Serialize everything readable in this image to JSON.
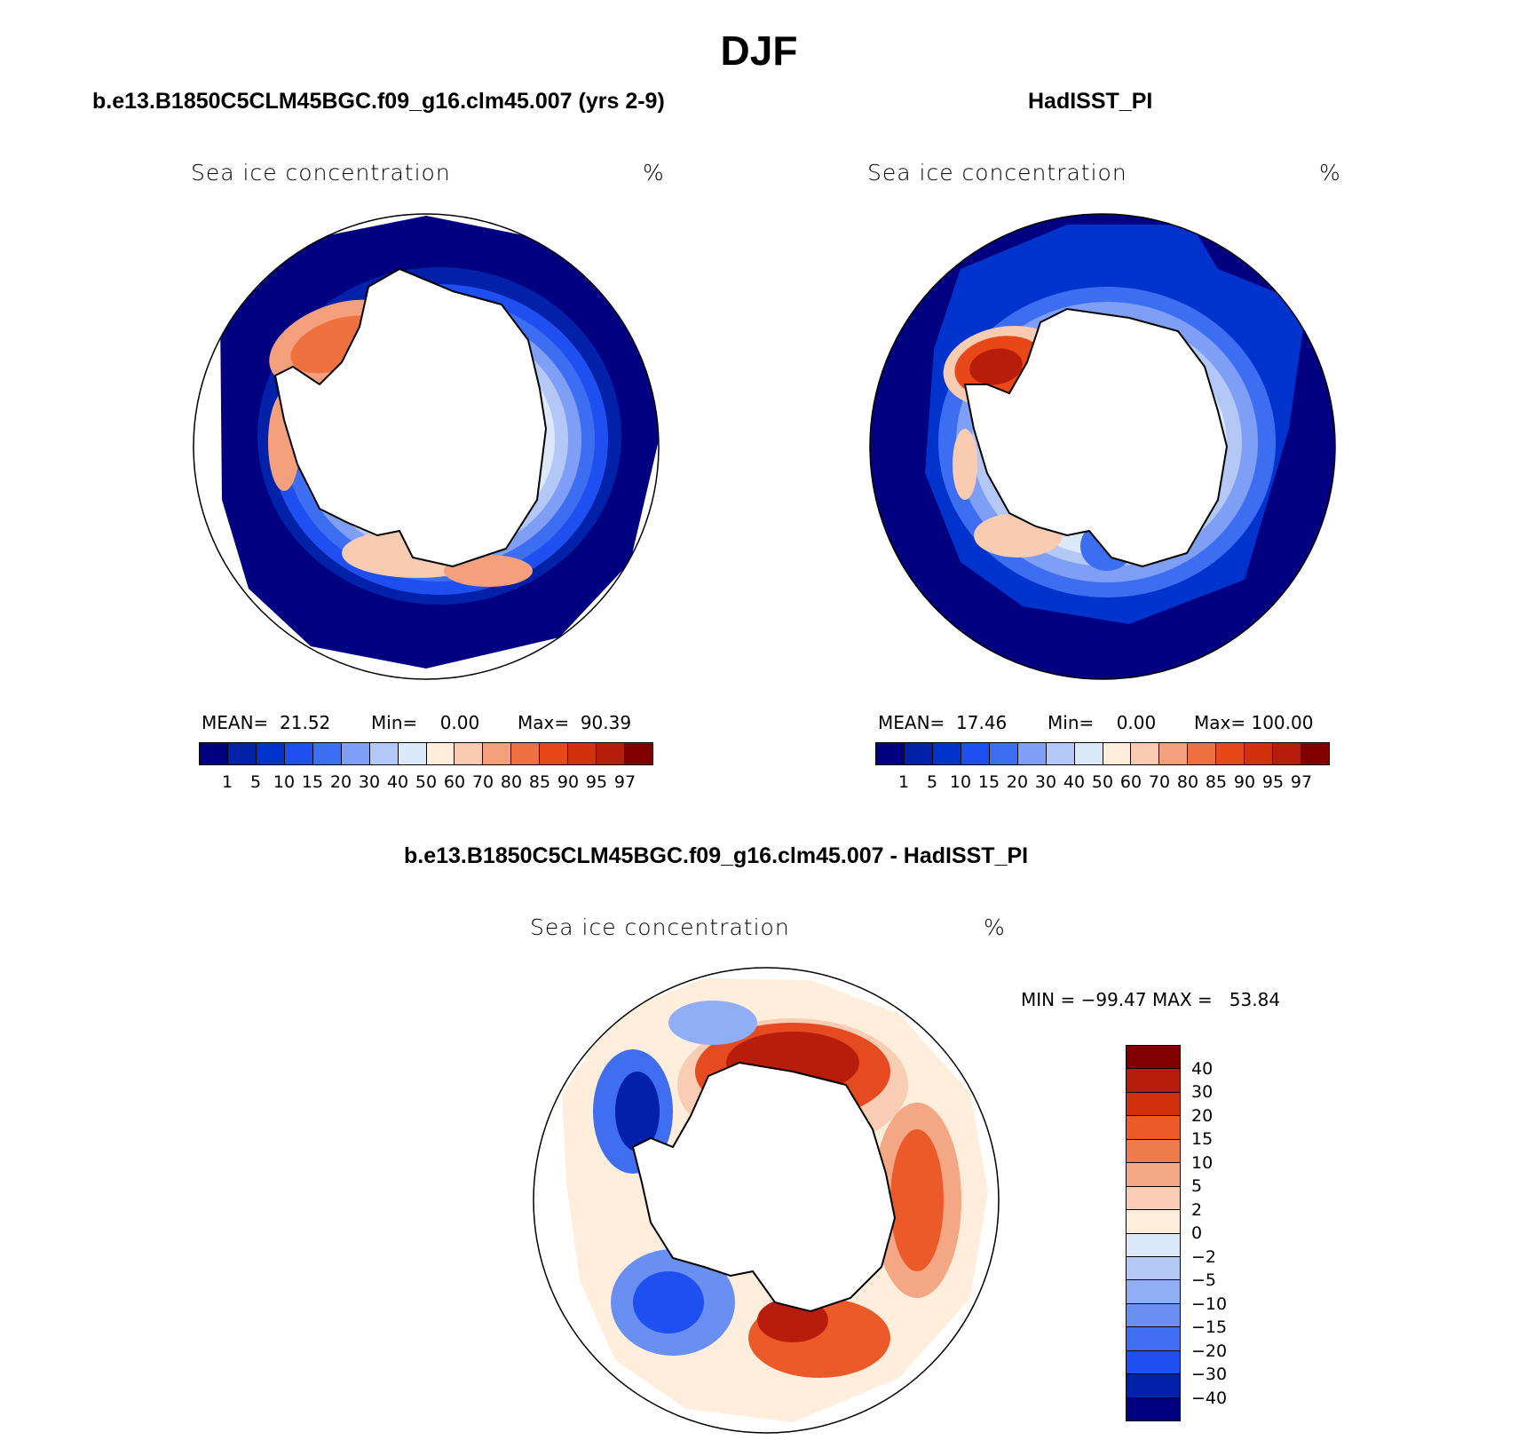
{
  "figure": {
    "title": "DJF",
    "colors": {
      "conc": [
        "#000080",
        "#0021a8",
        "#0033cc",
        "#1f4ff0",
        "#3d6ef2",
        "#7f9ef5",
        "#b4c8f8",
        "#dbe9fb",
        "#feeedb",
        "#f9cbb1",
        "#f4a07d",
        "#f07140",
        "#e8471a",
        "#d3300e",
        "#b81c0a",
        "#800000"
      ],
      "diff": [
        "#800000",
        "#b81c0a",
        "#d3300e",
        "#ed5a2a",
        "#f07c4e",
        "#f4a784",
        "#f8cdb3",
        "#feeedb",
        "#dbe9fb",
        "#b4c8f8",
        "#8faef6",
        "#6a8ff3",
        "#3f6ef0",
        "#1f4ff0",
        "#0021a8",
        "#000080"
      ]
    }
  },
  "chart_data": [
    {
      "type": "heatmap",
      "title": "b.e13.B1850C5CLM45BGC.f09_g16.clm45.007 (yrs 2-9)",
      "subtitle": "Sea ice concentration",
      "units": "%",
      "stats": {
        "mean_label": "MEAN=",
        "mean": "21.52",
        "min_label": "Min=",
        "min": "0.00",
        "max_label": "Max=",
        "max": "90.39"
      },
      "levels": [
        "1",
        "5",
        "10",
        "15",
        "20",
        "30",
        "40",
        "50",
        "60",
        "70",
        "80",
        "85",
        "90",
        "95",
        "97"
      ]
    },
    {
      "type": "heatmap",
      "title": "HadISST_PI",
      "subtitle": "Sea ice concentration",
      "units": "%",
      "stats": {
        "mean_label": "MEAN=",
        "mean": "17.46",
        "min_label": "Min=",
        "min": "0.00",
        "max_label": "Max=",
        "max": "100.00"
      },
      "levels": [
        "1",
        "5",
        "10",
        "15",
        "20",
        "30",
        "40",
        "50",
        "60",
        "70",
        "80",
        "85",
        "90",
        "95",
        "97"
      ]
    },
    {
      "type": "heatmap",
      "title": "b.e13.B1850C5CLM45BGC.f09_g16.clm45.007 - HadISST_PI",
      "subtitle": "Sea ice concentration",
      "units": "%",
      "stats": {
        "text": "MIN = −99.47 MAX =   53.84"
      },
      "levels": [
        "40",
        "30",
        "20",
        "15",
        "10",
        "5",
        "2",
        "0",
        "−2",
        "−5",
        "−10",
        "−15",
        "−20",
        "−30",
        "−40"
      ]
    }
  ]
}
